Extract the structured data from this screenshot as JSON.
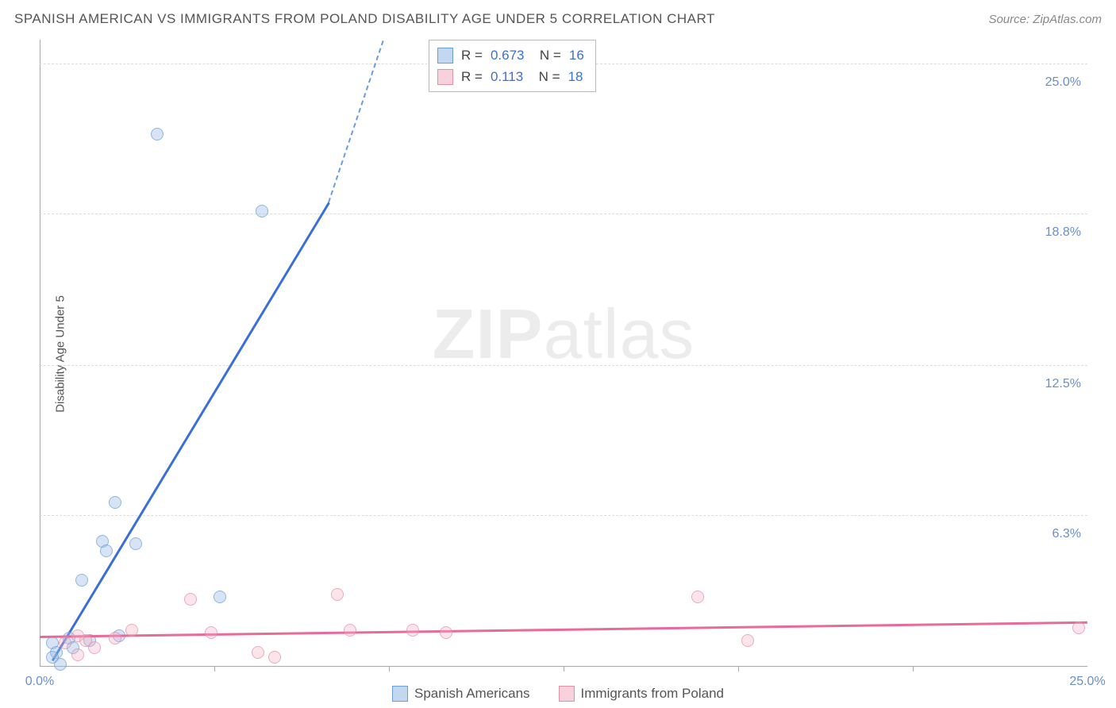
{
  "title": "SPANISH AMERICAN VS IMMIGRANTS FROM POLAND DISABILITY AGE UNDER 5 CORRELATION CHART",
  "source": "Source: ZipAtlas.com",
  "y_axis_label": "Disability Age Under 5",
  "watermark_bold": "ZIP",
  "watermark_rest": "atlas",
  "chart": {
    "type": "scatter",
    "xlim": [
      0,
      25
    ],
    "ylim": [
      0,
      26
    ],
    "x_ticks": [
      0,
      25
    ],
    "x_tick_labels": [
      "0.0%",
      "25.0%"
    ],
    "x_minor_ticks": [
      4.17,
      8.33,
      12.5,
      16.67,
      20.83
    ],
    "y_gridlines": [
      6.3,
      12.5,
      18.8,
      25.0
    ],
    "y_tick_labels": [
      "6.3%",
      "12.5%",
      "18.8%",
      "25.0%"
    ],
    "background_color": "#ffffff",
    "grid_color": "#dcdcdc",
    "axis_color": "#aaaaaa",
    "tick_label_color": "#6a8fc7",
    "marker_radius": 8,
    "series": [
      {
        "name": "Spanish Americans",
        "color_fill": "rgba(154,190,232,0.55)",
        "color_stroke": "#6a9ed8",
        "trend_color": "#3a6fd8",
        "css_class": "blue",
        "R": "0.673",
        "N": "16",
        "trend": {
          "x1": 0.3,
          "y1": 0.3,
          "x2": 6.9,
          "y2": 19.3,
          "dash_extend_x": 8.2,
          "dash_extend_y": 26.0
        },
        "points": [
          [
            2.8,
            22.1
          ],
          [
            5.3,
            18.9
          ],
          [
            1.8,
            6.8
          ],
          [
            1.5,
            5.2
          ],
          [
            1.6,
            4.8
          ],
          [
            2.3,
            5.1
          ],
          [
            1.0,
            3.6
          ],
          [
            4.3,
            2.9
          ],
          [
            1.9,
            1.3
          ],
          [
            0.7,
            1.2
          ],
          [
            0.3,
            1.0
          ],
          [
            0.4,
            0.6
          ],
          [
            1.2,
            1.1
          ],
          [
            0.5,
            0.1
          ],
          [
            0.3,
            0.4
          ],
          [
            0.8,
            0.8
          ]
        ]
      },
      {
        "name": "Immigrants from Poland",
        "color_fill": "rgba(241,178,196,0.45)",
        "color_stroke": "#e28fa8",
        "trend_color": "#e76a99",
        "css_class": "pink",
        "R": "0.113",
        "N": "18",
        "trend": {
          "x1": 0.0,
          "y1": 1.3,
          "x2": 25.0,
          "y2": 1.9
        },
        "points": [
          [
            15.7,
            2.9
          ],
          [
            24.8,
            1.6
          ],
          [
            16.9,
            1.1
          ],
          [
            9.7,
            1.4
          ],
          [
            8.9,
            1.5
          ],
          [
            7.1,
            3.0
          ],
          [
            7.4,
            1.5
          ],
          [
            5.6,
            0.4
          ],
          [
            3.6,
            2.8
          ],
          [
            4.1,
            1.4
          ],
          [
            2.2,
            1.5
          ],
          [
            1.8,
            1.2
          ],
          [
            0.9,
            1.3
          ],
          [
            0.6,
            1.0
          ],
          [
            1.3,
            0.8
          ],
          [
            0.9,
            0.5
          ],
          [
            5.2,
            0.6
          ],
          [
            1.1,
            1.1
          ]
        ]
      }
    ]
  },
  "legend_top": {
    "rows": [
      {
        "swatch": "blue",
        "r_label": "R =",
        "r_val": "0.673",
        "n_label": "N =",
        "n_val": "16"
      },
      {
        "swatch": "pink",
        "r_label": "R =",
        "r_val": "0.113",
        "n_label": "N =",
        "n_val": "18"
      }
    ]
  },
  "legend_bottom": {
    "items": [
      {
        "swatch": "blue",
        "label": "Spanish Americans"
      },
      {
        "swatch": "pink",
        "label": "Immigrants from Poland"
      }
    ]
  }
}
